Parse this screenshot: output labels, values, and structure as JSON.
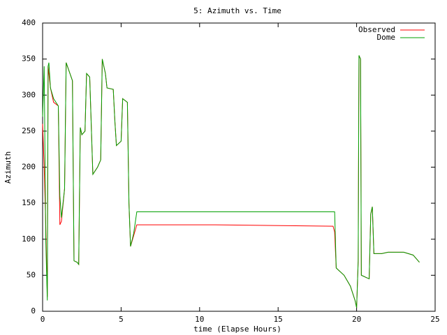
{
  "chart_data": {
    "type": "line",
    "title": "5: Azimuth vs. Time",
    "x_label": "time (Elapse Hours)",
    "y_label": "Azimuth",
    "x": [
      0.0,
      0.1,
      0.2,
      0.3,
      0.35,
      0.4,
      0.5,
      0.7,
      1.0,
      1.1,
      1.2,
      1.4,
      1.5,
      1.9,
      2.0,
      2.2,
      2.3,
      2.4,
      2.5,
      2.7,
      2.8,
      3.0,
      3.2,
      3.5,
      3.7,
      3.8,
      4.0,
      4.1,
      4.5,
      4.6,
      4.7,
      5.0,
      5.1,
      5.4,
      5.5,
      5.6,
      5.8,
      6.0,
      11.0,
      18.5,
      18.6,
      18.7,
      19.2,
      19.6,
      19.9,
      20.0,
      20.1,
      20.15,
      20.25,
      20.3,
      20.8,
      20.9,
      21.0,
      21.1,
      21.6,
      22.0,
      23.0,
      23.6,
      24.0
    ],
    "series": [
      {
        "name": "Observed",
        "color": "#ff0000",
        "values": [
          260,
          200,
          120,
          20,
          340,
          330,
          310,
          290,
          285,
          120,
          125,
          170,
          345,
          320,
          70,
          68,
          65,
          255,
          245,
          250,
          330,
          325,
          190,
          200,
          210,
          350,
          330,
          310,
          308,
          265,
          230,
          236,
          295,
          290,
          150,
          90,
          105,
          120,
          120,
          118,
          110,
          60,
          50,
          35,
          15,
          5,
          70,
          355,
          350,
          50,
          45,
          135,
          145,
          80,
          80,
          82,
          82,
          78,
          68
        ]
      },
      {
        "name": "Dome",
        "color": "#00a000",
        "values": [
          270,
          340,
          100,
          15,
          340,
          345,
          310,
          295,
          285,
          160,
          130,
          170,
          345,
          320,
          70,
          68,
          65,
          255,
          245,
          250,
          330,
          325,
          190,
          200,
          210,
          350,
          330,
          310,
          308,
          265,
          230,
          236,
          295,
          290,
          150,
          90,
          108,
          138,
          138,
          138,
          138,
          60,
          50,
          35,
          15,
          5,
          70,
          355,
          350,
          50,
          45,
          135,
          145,
          80,
          80,
          82,
          82,
          78,
          68
        ]
      }
    ],
    "xlim": [
      0,
      25
    ],
    "xticks": [
      0,
      5,
      10,
      15,
      20,
      25
    ],
    "ylim": [
      0,
      400
    ],
    "yticks": [
      0,
      50,
      100,
      150,
      200,
      250,
      300,
      350,
      400
    ],
    "legend": "top-right"
  }
}
